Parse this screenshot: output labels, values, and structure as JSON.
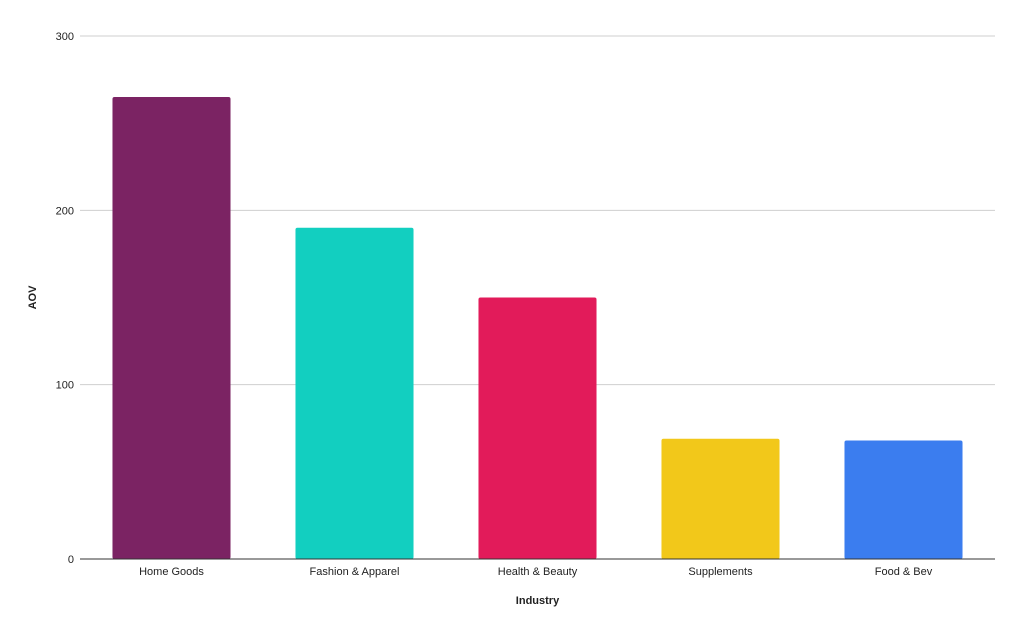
{
  "chart_data": {
    "type": "bar",
    "categories": [
      "Home Goods",
      "Fashion & Apparel",
      "Health & Beauty",
      "Supplements",
      "Food & Bev"
    ],
    "values": [
      265,
      190,
      150,
      69,
      68
    ],
    "colors": [
      "#7b2363",
      "#12cfc0",
      "#e21b5a",
      "#f2c81a",
      "#3b7def"
    ],
    "xlabel": "Industry",
    "ylabel": "AOV",
    "ylim": [
      0,
      300
    ],
    "yticks": [
      0,
      100,
      200,
      300
    ],
    "ytick_labels": [
      "0",
      "100",
      "200",
      "300"
    ],
    "grid": true,
    "legend": "none"
  }
}
